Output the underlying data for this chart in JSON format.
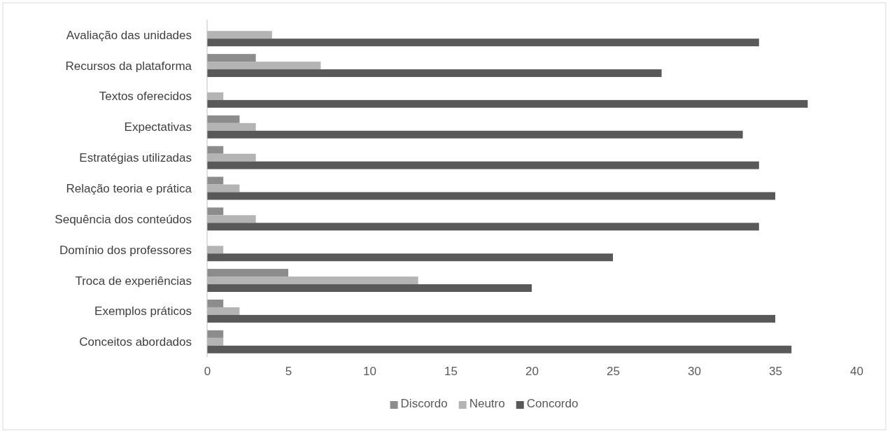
{
  "chart_data": {
    "type": "bar",
    "orientation": "horizontal",
    "categories": [
      "Avaliação das unidades",
      "Recursos da plataforma",
      "Textos oferecidos",
      "Expectativas",
      "Estratégias utilizadas",
      "Relação teoria e prática",
      "Sequência dos conteúdos",
      "Domínio dos professores",
      "Troca de experiências",
      "Exemplos práticos",
      "Conceitos abordados"
    ],
    "series": [
      {
        "name": "Discordo",
        "color": "#8c8c8c",
        "values": [
          0,
          3,
          0,
          2,
          1,
          1,
          1,
          0,
          5,
          1,
          1
        ]
      },
      {
        "name": "Neutro",
        "color": "#b4b4b4",
        "values": [
          4,
          7,
          1,
          3,
          3,
          2,
          3,
          1,
          13,
          2,
          1
        ]
      },
      {
        "name": "Concordo",
        "color": "#595959",
        "values": [
          34,
          28,
          37,
          33,
          34,
          35,
          34,
          25,
          20,
          35,
          36
        ]
      }
    ],
    "xlim": [
      0,
      40
    ],
    "xticks": [
      0,
      5,
      10,
      15,
      20,
      25,
      30,
      35,
      40
    ],
    "grid": false,
    "legend": "bottom"
  }
}
